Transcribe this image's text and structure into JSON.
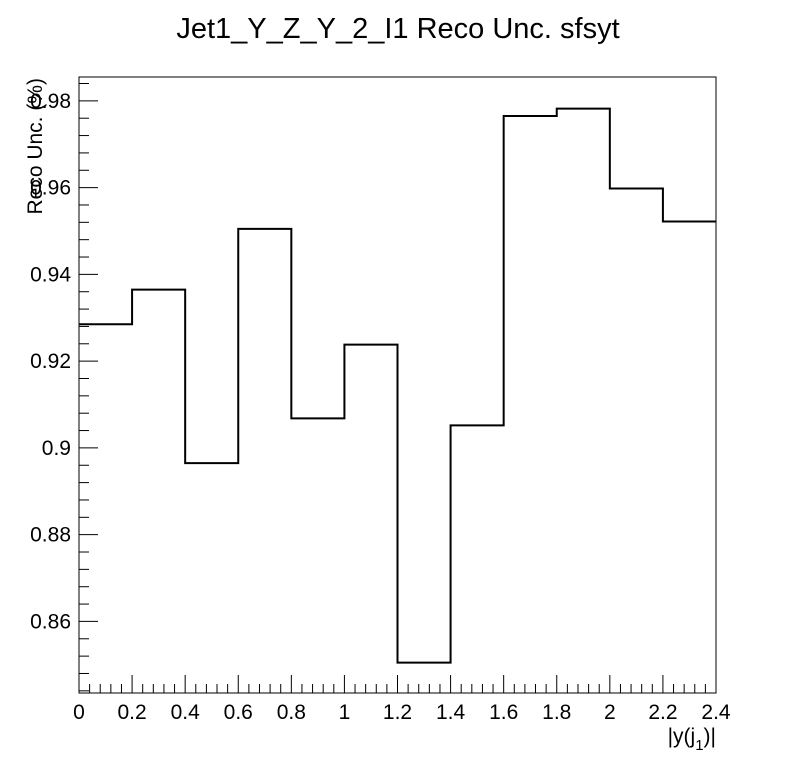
{
  "chart_data": {
    "type": "step",
    "title": "Jet1_Y_Z_Y_2_I1 Reco Unc. sfsyt",
    "xlabel": "|y(j_1)|",
    "xlabel_main": "|y(j",
    "xlabel_sub": "1",
    "xlabel_end": ")|",
    "ylabel": "Reco Unc. (%)",
    "xlim": [
      0,
      2.4
    ],
    "ylim": [
      0.8435,
      0.9855
    ],
    "x_ticks": [
      "0",
      "0.2",
      "0.4",
      "0.6",
      "0.8",
      "1",
      "1.2",
      "1.4",
      "1.6",
      "1.8",
      "2",
      "2.2",
      "2.4"
    ],
    "x_tick_values": [
      0,
      0.2,
      0.4,
      0.6,
      0.8,
      1.0,
      1.2,
      1.4,
      1.6,
      1.8,
      2.0,
      2.2,
      2.4
    ],
    "y_ticks": [
      "0.86",
      "0.88",
      "0.9",
      "0.92",
      "0.94",
      "0.96",
      "0.98"
    ],
    "y_tick_values": [
      0.86,
      0.88,
      0.9,
      0.92,
      0.94,
      0.96,
      0.98
    ],
    "bin_edges": [
      0,
      0.2,
      0.4,
      0.6,
      0.8,
      1.0,
      1.2,
      1.4,
      1.6,
      1.8,
      2.0,
      2.2,
      2.4
    ],
    "values": [
      0.9285,
      0.9365,
      0.8965,
      0.9505,
      0.9068,
      0.9238,
      0.8505,
      0.9052,
      0.9765,
      0.9782,
      0.9598,
      0.9522
    ],
    "line_color": "#000000",
    "grid": false,
    "legend": "none"
  }
}
